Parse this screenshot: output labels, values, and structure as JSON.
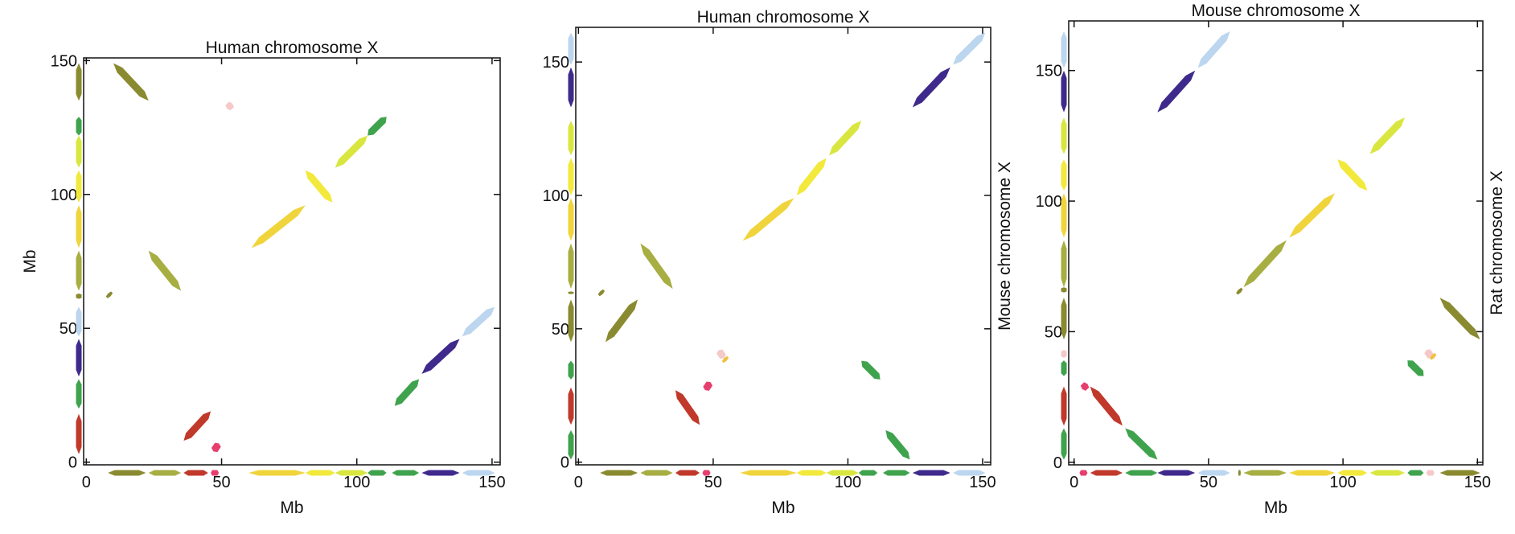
{
  "chart_data": [
    {
      "type": "scatter",
      "title": "Human chromosome X",
      "xlabel": "Mb",
      "ylabel": "Mb",
      "ylabel_side": "left",
      "xlim": [
        -1,
        153
      ],
      "ylim": [
        -1,
        151
      ],
      "x_ticks": [
        0,
        50,
        100,
        150
      ],
      "y_ticks": [
        0,
        50,
        100,
        150
      ],
      "grid": false,
      "segments": [
        {
          "x1": 10,
          "y1": 149,
          "x2": 23,
          "y2": 135,
          "color": "#8a8a30"
        },
        {
          "x1": 23,
          "y1": 79,
          "x2": 35,
          "y2": 64,
          "color": "#a7ae42"
        },
        {
          "x1": 8,
          "y1": 63,
          "x2": 9,
          "y2": 62,
          "color": "#8a8a30"
        },
        {
          "x1": 36,
          "y1": 8,
          "x2": 46,
          "y2": 19,
          "color": "#c0392b"
        },
        {
          "x1": 47,
          "y1": 4,
          "x2": 49,
          "y2": 7,
          "color": "#e63f6e"
        },
        {
          "x1": 52,
          "y1": 132,
          "x2": 54,
          "y2": 134,
          "color": "#f6c9c9"
        },
        {
          "x1": 61,
          "y1": 80,
          "x2": 81,
          "y2": 96,
          "color": "#f0d43c"
        },
        {
          "x1": 81,
          "y1": 109,
          "x2": 91,
          "y2": 97,
          "color": "#f2e93c"
        },
        {
          "x1": 92,
          "y1": 110,
          "x2": 104,
          "y2": 122,
          "color": "#d9e640"
        },
        {
          "x1": 104,
          "y1": 122,
          "x2": 111,
          "y2": 129,
          "color": "#3fa34d"
        },
        {
          "x1": 114,
          "y1": 21,
          "x2": 123,
          "y2": 31,
          "color": "#3fa34d"
        },
        {
          "x1": 124,
          "y1": 33,
          "x2": 138,
          "y2": 46,
          "color": "#3f2a8c"
        },
        {
          "x1": 139,
          "y1": 47,
          "x2": 151,
          "y2": 58,
          "color": "#bcd6ef"
        }
      ],
      "x_track": [
        {
          "start": 8,
          "end": 22,
          "color": "#8a8a30"
        },
        {
          "start": 23,
          "end": 35,
          "color": "#a7ae42"
        },
        {
          "start": 36,
          "end": 45,
          "color": "#c0392b"
        },
        {
          "start": 46,
          "end": 49,
          "color": "#e63f6e"
        },
        {
          "start": 60,
          "end": 81,
          "color": "#f0d43c"
        },
        {
          "start": 81,
          "end": 92,
          "color": "#f2e93c"
        },
        {
          "start": 92,
          "end": 104,
          "color": "#d9e640"
        },
        {
          "start": 104,
          "end": 111,
          "color": "#3fa34d"
        },
        {
          "start": 113,
          "end": 123,
          "color": "#3fa34d"
        },
        {
          "start": 124,
          "end": 138,
          "color": "#3f2a8c"
        },
        {
          "start": 139,
          "end": 151,
          "color": "#bcd6ef"
        }
      ],
      "y_track": [
        {
          "start": 3,
          "end": 18,
          "color": "#c0392b"
        },
        {
          "start": 20,
          "end": 31,
          "color": "#3fa34d"
        },
        {
          "start": 32,
          "end": 46,
          "color": "#3f2a8c"
        },
        {
          "start": 47,
          "end": 58,
          "color": "#bcd6ef"
        },
        {
          "start": 61,
          "end": 63,
          "color": "#8a8a30"
        },
        {
          "start": 64,
          "end": 79,
          "color": "#a7ae42"
        },
        {
          "start": 80,
          "end": 96,
          "color": "#f0d43c"
        },
        {
          "start": 97,
          "end": 109,
          "color": "#f2e93c"
        },
        {
          "start": 110,
          "end": 122,
          "color": "#d9e640"
        },
        {
          "start": 122,
          "end": 129,
          "color": "#3fa34d"
        },
        {
          "start": 135,
          "end": 149,
          "color": "#8a8a30"
        }
      ]
    },
    {
      "type": "scatter",
      "title": "Human chromosome X",
      "xlabel": "Mb",
      "ylabel": "Mouse chromosome X",
      "ylabel_side": "right",
      "xlim": [
        -1,
        153
      ],
      "ylim": [
        -1,
        163
      ],
      "x_ticks": [
        0,
        50,
        100,
        150
      ],
      "y_ticks": [
        0,
        50,
        100,
        150
      ],
      "grid": false,
      "segments": [
        {
          "x1": 10,
          "y1": 45,
          "x2": 22,
          "y2": 61,
          "color": "#8a8a30"
        },
        {
          "x1": 23,
          "y1": 82,
          "x2": 35,
          "y2": 65,
          "color": "#a7ae42"
        },
        {
          "x1": 8,
          "y1": 64,
          "x2": 9,
          "y2": 63,
          "color": "#8a8a30"
        },
        {
          "x1": 36,
          "y1": 27,
          "x2": 45,
          "y2": 14,
          "color": "#c0392b"
        },
        {
          "x1": 47,
          "y1": 27,
          "x2": 49,
          "y2": 30,
          "color": "#e63f6e"
        },
        {
          "x1": 52,
          "y1": 42,
          "x2": 54,
          "y2": 39,
          "color": "#f6c9c9"
        },
        {
          "x1": 54,
          "y1": 39,
          "x2": 55,
          "y2": 38,
          "color": "#f0c040"
        },
        {
          "x1": 61,
          "y1": 83,
          "x2": 80,
          "y2": 99,
          "color": "#f0d43c"
        },
        {
          "x1": 81,
          "y1": 100,
          "x2": 92,
          "y2": 114,
          "color": "#f2e93c"
        },
        {
          "x1": 93,
          "y1": 115,
          "x2": 105,
          "y2": 128,
          "color": "#d9e640"
        },
        {
          "x1": 105,
          "y1": 38,
          "x2": 112,
          "y2": 31,
          "color": "#3fa34d"
        },
        {
          "x1": 114,
          "y1": 12,
          "x2": 123,
          "y2": 1,
          "color": "#3fa34d"
        },
        {
          "x1": 124,
          "y1": 133,
          "x2": 138,
          "y2": 148,
          "color": "#3f2a8c"
        },
        {
          "x1": 139,
          "y1": 149,
          "x2": 151,
          "y2": 161,
          "color": "#bcd6ef"
        }
      ],
      "x_track": [
        {
          "start": 8,
          "end": 22,
          "color": "#8a8a30"
        },
        {
          "start": 23,
          "end": 35,
          "color": "#a7ae42"
        },
        {
          "start": 36,
          "end": 45,
          "color": "#c0392b"
        },
        {
          "start": 46,
          "end": 49,
          "color": "#e63f6e"
        },
        {
          "start": 60,
          "end": 81,
          "color": "#f0d43c"
        },
        {
          "start": 81,
          "end": 92,
          "color": "#f2e93c"
        },
        {
          "start": 92,
          "end": 104,
          "color": "#d9e640"
        },
        {
          "start": 104,
          "end": 111,
          "color": "#3fa34d"
        },
        {
          "start": 113,
          "end": 123,
          "color": "#3fa34d"
        },
        {
          "start": 124,
          "end": 138,
          "color": "#3f2a8c"
        },
        {
          "start": 139,
          "end": 151,
          "color": "#bcd6ef"
        }
      ],
      "y_track": [
        {
          "start": 1,
          "end": 12,
          "color": "#3fa34d"
        },
        {
          "start": 14,
          "end": 28,
          "color": "#c0392b"
        },
        {
          "start": 31,
          "end": 38,
          "color": "#3fa34d"
        },
        {
          "start": 45,
          "end": 61,
          "color": "#8a8a30"
        },
        {
          "start": 63,
          "end": 64,
          "color": "#8a8a30"
        },
        {
          "start": 65,
          "end": 82,
          "color": "#a7ae42"
        },
        {
          "start": 83,
          "end": 99,
          "color": "#f0d43c"
        },
        {
          "start": 100,
          "end": 114,
          "color": "#f2e93c"
        },
        {
          "start": 115,
          "end": 128,
          "color": "#d9e640"
        },
        {
          "start": 133,
          "end": 148,
          "color": "#3f2a8c"
        },
        {
          "start": 149,
          "end": 161,
          "color": "#bcd6ef"
        }
      ]
    },
    {
      "type": "scatter",
      "title": "Mouse chromosome X",
      "xlabel": "Mb",
      "ylabel": "Rat chromosome X",
      "ylabel_side": "right",
      "xlim": [
        -2,
        152
      ],
      "ylim": [
        -1,
        169
      ],
      "x_ticks": [
        0,
        50,
        100,
        150
      ],
      "y_ticks": [
        0,
        50,
        100,
        150
      ],
      "grid": false,
      "segments": [
        {
          "x1": 3,
          "y1": 28,
          "x2": 5,
          "y2": 30,
          "color": "#e63f6e"
        },
        {
          "x1": 6,
          "y1": 29,
          "x2": 18,
          "y2": 14,
          "color": "#c0392b"
        },
        {
          "x1": 19,
          "y1": 13,
          "x2": 31,
          "y2": 1,
          "color": "#3fa34d"
        },
        {
          "x1": 31,
          "y1": 134,
          "x2": 45,
          "y2": 150,
          "color": "#3f2a8c"
        },
        {
          "x1": 46,
          "y1": 151,
          "x2": 58,
          "y2": 165,
          "color": "#bcd6ef"
        },
        {
          "x1": 61,
          "y1": 66,
          "x2": 62,
          "y2": 65,
          "color": "#8a8a30"
        },
        {
          "x1": 63,
          "y1": 67,
          "x2": 79,
          "y2": 85,
          "color": "#a7ae42"
        },
        {
          "x1": 80,
          "y1": 86,
          "x2": 97,
          "y2": 103,
          "color": "#f0d43c"
        },
        {
          "x1": 98,
          "y1": 116,
          "x2": 109,
          "y2": 104,
          "color": "#f2e93c"
        },
        {
          "x1": 110,
          "y1": 118,
          "x2": 123,
          "y2": 132,
          "color": "#d9e640"
        },
        {
          "x1": 124,
          "y1": 39,
          "x2": 130,
          "y2": 33,
          "color": "#3fa34d"
        },
        {
          "x1": 131,
          "y1": 43,
          "x2": 133,
          "y2": 40,
          "color": "#f6c9c9"
        },
        {
          "x1": 133,
          "y1": 41,
          "x2": 134,
          "y2": 40,
          "color": "#f0c040"
        },
        {
          "x1": 136,
          "y1": 63,
          "x2": 151,
          "y2": 47,
          "color": "#8a8a30"
        }
      ],
      "x_track": [
        {
          "start": 2,
          "end": 5,
          "color": "#e63f6e"
        },
        {
          "start": 6,
          "end": 18,
          "color": "#c0392b"
        },
        {
          "start": 19,
          "end": 31,
          "color": "#3fa34d"
        },
        {
          "start": 31,
          "end": 45,
          "color": "#3f2a8c"
        },
        {
          "start": 46,
          "end": 58,
          "color": "#bcd6ef"
        },
        {
          "start": 61,
          "end": 62,
          "color": "#8a8a30"
        },
        {
          "start": 63,
          "end": 79,
          "color": "#a7ae42"
        },
        {
          "start": 80,
          "end": 97,
          "color": "#f0d43c"
        },
        {
          "start": 98,
          "end": 109,
          "color": "#f2e93c"
        },
        {
          "start": 110,
          "end": 123,
          "color": "#d9e640"
        },
        {
          "start": 124,
          "end": 130,
          "color": "#3fa34d"
        },
        {
          "start": 131,
          "end": 134,
          "color": "#f6c9c9"
        },
        {
          "start": 136,
          "end": 151,
          "color": "#8a8a30"
        }
      ],
      "y_track": [
        {
          "start": 1,
          "end": 13,
          "color": "#3fa34d"
        },
        {
          "start": 14,
          "end": 29,
          "color": "#c0392b"
        },
        {
          "start": 33,
          "end": 39,
          "color": "#3fa34d"
        },
        {
          "start": 40,
          "end": 43,
          "color": "#f6c9c9"
        },
        {
          "start": 47,
          "end": 63,
          "color": "#8a8a30"
        },
        {
          "start": 65,
          "end": 67,
          "color": "#8a8a30"
        },
        {
          "start": 67,
          "end": 85,
          "color": "#a7ae42"
        },
        {
          "start": 86,
          "end": 103,
          "color": "#f0d43c"
        },
        {
          "start": 104,
          "end": 116,
          "color": "#f2e93c"
        },
        {
          "start": 118,
          "end": 132,
          "color": "#d9e640"
        },
        {
          "start": 134,
          "end": 150,
          "color": "#3f2a8c"
        },
        {
          "start": 151,
          "end": 165,
          "color": "#bcd6ef"
        }
      ]
    }
  ]
}
